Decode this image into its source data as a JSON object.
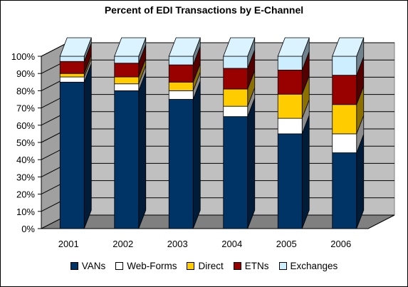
{
  "chart_data": {
    "type": "bar",
    "stacked": true,
    "title": "Percent of EDI Transactions by E-Channel",
    "xlabel": "",
    "ylabel": "",
    "ylim": [
      0,
      100
    ],
    "y_ticks": [
      "0%",
      "10%",
      "20%",
      "30%",
      "40%",
      "50%",
      "60%",
      "70%",
      "80%",
      "90%",
      "100%"
    ],
    "categories": [
      "2001",
      "2002",
      "2003",
      "2004",
      "2005",
      "2006"
    ],
    "series": [
      {
        "name": "VANs",
        "color": "#003366",
        "values": [
          85,
          80,
          75,
          65,
          55,
          44
        ]
      },
      {
        "name": "Web-Forms",
        "color": "#ffffff",
        "values": [
          3,
          4,
          5,
          6,
          9,
          11
        ]
      },
      {
        "name": "Direct",
        "color": "#ffcc00",
        "values": [
          2,
          4,
          5,
          10,
          14,
          17
        ]
      },
      {
        "name": "ETNs",
        "color": "#990000",
        "values": [
          7,
          8,
          10,
          12,
          14,
          17
        ]
      },
      {
        "name": "Exchanges",
        "color": "#cceeff",
        "values": [
          3,
          4,
          5,
          7,
          8,
          11
        ]
      }
    ],
    "legend_position": "bottom",
    "grid": true,
    "background": "#c0c0c0"
  }
}
